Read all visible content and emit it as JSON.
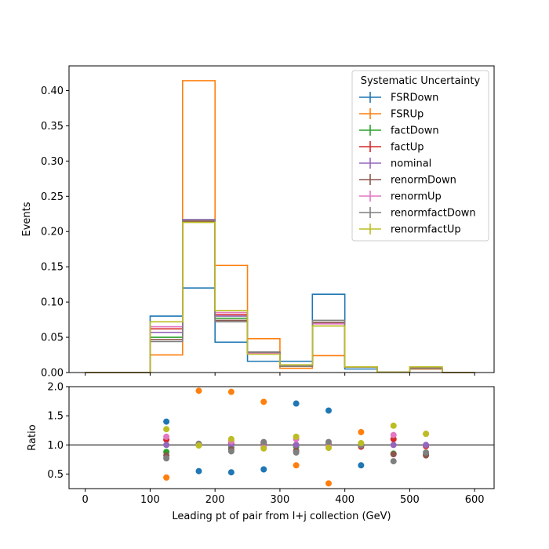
{
  "chart_data": {
    "type": "step-histogram-with-ratio",
    "bin_edges": [
      0,
      50,
      100,
      150,
      200,
      250,
      300,
      350,
      400,
      450,
      500,
      550,
      600
    ],
    "xlabel": "Leading pt of pair from l+j collection (GeV)",
    "xlim": [
      -25,
      630
    ],
    "x_ticks": [
      0,
      100,
      200,
      300,
      400,
      500,
      600
    ],
    "top_panel": {
      "ylabel": "Events",
      "ylim": [
        0,
        0.435
      ],
      "y_ticks": [
        "0.00",
        "0.05",
        "0.10",
        "0.15",
        "0.20",
        "0.25",
        "0.30",
        "0.35",
        "0.40"
      ]
    },
    "ratio_panel": {
      "ylabel": "Ratio",
      "ylim": [
        0.25,
        2.0
      ],
      "y_ticks": [
        "0.5",
        "1.0",
        "1.5",
        "2.0"
      ],
      "reference_line": 1.0
    },
    "legend": {
      "title": "Systematic Uncertainty",
      "placement": "top-right"
    },
    "series": [
      {
        "name": "FSRDown",
        "color": "#1f77b4",
        "values": [
          0,
          0,
          0.08,
          0.12,
          0.043,
          0.016,
          0.016,
          0.111,
          0.005,
          0.0005,
          0.005,
          0
        ],
        "ratio": [
          null,
          null,
          1.4,
          0.55,
          0.53,
          0.58,
          1.71,
          1.59,
          0.65,
          null,
          null,
          null
        ]
      },
      {
        "name": "FSRUp",
        "color": "#ff7f0e",
        "values": [
          0,
          0,
          0.025,
          0.414,
          0.152,
          0.048,
          0.006,
          0.024,
          0.008,
          0.0005,
          0.005,
          0
        ],
        "ratio": [
          null,
          null,
          0.44,
          1.93,
          1.91,
          1.74,
          0.65,
          0.34,
          1.22,
          null,
          null,
          null
        ]
      },
      {
        "name": "factDown",
        "color": "#2ca02c",
        "values": [
          0,
          0,
          0.05,
          0.215,
          0.077,
          0.028,
          0.009,
          0.07,
          0.008,
          0.0005,
          0.006,
          0
        ],
        "ratio": [
          null,
          null,
          0.88,
          1.0,
          0.96,
          1.0,
          0.97,
          1.0,
          1.0,
          0.85,
          0.84,
          null
        ]
      },
      {
        "name": "factUp",
        "color": "#d62728",
        "values": [
          0,
          0,
          0.062,
          0.215,
          0.082,
          0.028,
          0.01,
          0.07,
          0.008,
          0.0005,
          0.006,
          0
        ],
        "ratio": [
          null,
          null,
          1.09,
          1.0,
          1.02,
          1.0,
          1.0,
          1.0,
          0.97,
          1.1,
          0.98,
          null
        ]
      },
      {
        "name": "nominal",
        "color": "#9467bd",
        "values": [
          0,
          0,
          0.057,
          0.217,
          0.08,
          0.028,
          0.01,
          0.07,
          0.008,
          0.0005,
          0.007,
          0
        ],
        "ratio": [
          null,
          null,
          1.0,
          1.0,
          1.0,
          1.0,
          1.0,
          1.0,
          1.0,
          1.0,
          1.0,
          null
        ]
      },
      {
        "name": "renormDown",
        "color": "#8c564b",
        "values": [
          0,
          0,
          0.047,
          0.214,
          0.074,
          0.029,
          0.009,
          0.071,
          0.008,
          0.0005,
          0.006,
          0
        ],
        "ratio": [
          null,
          null,
          0.82,
          1.0,
          0.92,
          1.04,
          0.9,
          1.01,
          1.0,
          0.84,
          0.82,
          null
        ]
      },
      {
        "name": "renormUp",
        "color": "#e377c2",
        "values": [
          0,
          0,
          0.065,
          0.216,
          0.085,
          0.027,
          0.01,
          0.069,
          0.008,
          0.0005,
          0.008,
          0
        ],
        "ratio": [
          null,
          null,
          1.14,
          1.0,
          1.06,
          0.96,
          1.1,
          0.99,
          1.02,
          1.17,
          1.19,
          null
        ]
      },
      {
        "name": "renormfactDown",
        "color": "#7f7f7f",
        "values": [
          0,
          0,
          0.044,
          0.216,
          0.072,
          0.029,
          0.009,
          0.074,
          0.008,
          0.0005,
          0.006,
          0
        ],
        "ratio": [
          null,
          null,
          0.77,
          1.02,
          0.89,
          1.05,
          0.87,
          1.05,
          0.99,
          0.72,
          0.87,
          null
        ]
      },
      {
        "name": "renormfactUp",
        "color": "#bcbd22",
        "values": [
          0,
          0,
          0.072,
          0.213,
          0.088,
          0.026,
          0.011,
          0.066,
          0.008,
          0.0005,
          0.008,
          0
        ],
        "ratio": [
          null,
          null,
          1.27,
          0.99,
          1.1,
          0.94,
          1.14,
          0.95,
          1.03,
          1.33,
          1.19,
          null
        ]
      }
    ]
  }
}
